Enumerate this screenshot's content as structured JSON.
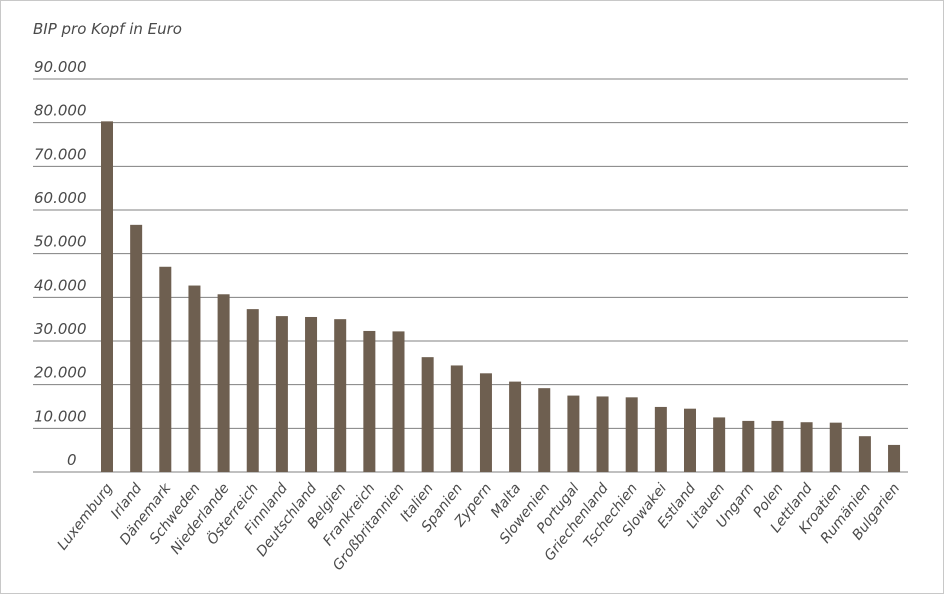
{
  "chart_data": {
    "type": "bar",
    "title": "BIP pro Kopf in Euro",
    "xlabel": "",
    "ylabel": "",
    "ylim": [
      0,
      90000
    ],
    "yticks": [
      0,
      10000,
      20000,
      30000,
      40000,
      50000,
      60000,
      70000,
      80000,
      90000
    ],
    "ytick_labels": [
      "0",
      "10.000",
      "20.000",
      "30.000",
      "40.000",
      "50.000",
      "60.000",
      "70.000",
      "80.000",
      "90.000"
    ],
    "grid": true,
    "bar_color": "#6e5f50",
    "grid_color": "#808080",
    "categories": [
      "Luxemburg",
      "Irland",
      "Dänemark",
      "Schweden",
      "Niederlande",
      "Österreich",
      "Finnland",
      "Deutschland",
      "Belgien",
      "Frankreich",
      "Großbritannien",
      "Italien",
      "Spanien",
      "Zypern",
      "Malta",
      "Slowenien",
      "Portugal",
      "Griechenland",
      "Tschechien",
      "Slowakei",
      "Estland",
      "Litauen",
      "Ungarn",
      "Polen",
      "Lettland",
      "Kroatien",
      "Rumänien",
      "Bulgarien"
    ],
    "values": [
      80300,
      56600,
      47000,
      42700,
      40700,
      37300,
      35700,
      35500,
      35000,
      32300,
      32200,
      26300,
      24400,
      22600,
      20700,
      19200,
      17500,
      17300,
      17100,
      14900,
      14500,
      12500,
      11700,
      11700,
      11400,
      11300,
      8200,
      6200
    ]
  }
}
